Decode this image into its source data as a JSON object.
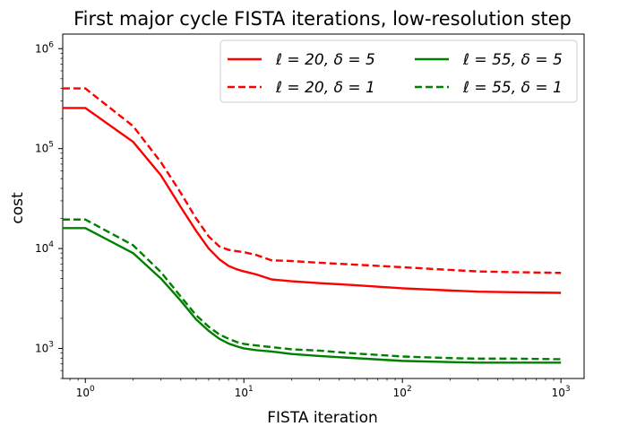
{
  "chart_data": {
    "type": "line",
    "title": "First major cycle FISTA iterations, low-resolution step",
    "xlabel": "FISTA iteration",
    "ylabel": "cost",
    "xscale": "log",
    "yscale": "log",
    "xlim": [
      0.72,
      1400
    ],
    "ylim": [
      500,
      1400000
    ],
    "xticks": [
      {
        "value": 1,
        "base": "10",
        "exp": "0"
      },
      {
        "value": 10,
        "base": "10",
        "exp": "1"
      },
      {
        "value": 100,
        "base": "10",
        "exp": "2"
      },
      {
        "value": 1000,
        "base": "10",
        "exp": "3"
      }
    ],
    "yticks": [
      {
        "value": 1000,
        "base": "10",
        "exp": "3"
      },
      {
        "value": 10000,
        "base": "10",
        "exp": "4"
      },
      {
        "value": 100000,
        "base": "10",
        "exp": "5"
      },
      {
        "value": 1000000,
        "base": "10",
        "exp": "6"
      }
    ],
    "grid": false,
    "legend_position": "top-right",
    "legend_columns": 2,
    "series": [
      {
        "name": "ℓ = 20, δ = 5",
        "color": "#ff0000",
        "dash": "solid",
        "x": [
          0.72,
          1,
          2,
          3,
          4,
          5,
          6,
          7,
          8,
          9,
          10,
          12,
          15,
          20,
          30,
          50,
          100,
          200,
          300,
          500,
          1000
        ],
        "y": [
          255000,
          255000,
          117000,
          54000,
          26000,
          15000,
          10000,
          7800,
          6700,
          6200,
          5900,
          5500,
          4900,
          4700,
          4500,
          4300,
          4000,
          3800,
          3700,
          3650,
          3600
        ]
      },
      {
        "name": "ℓ = 20, δ = 1",
        "color": "#ff0000",
        "dash": "dashed",
        "x": [
          0.72,
          1,
          2,
          3,
          4,
          5,
          6,
          7,
          8,
          9,
          10,
          12,
          15,
          20,
          30,
          50,
          100,
          200,
          300,
          500,
          1000
        ],
        "y": [
          400000,
          400000,
          168000,
          73000,
          36000,
          20000,
          13200,
          10500,
          9700,
          9400,
          9200,
          8600,
          7600,
          7500,
          7200,
          6900,
          6500,
          6100,
          5900,
          5800,
          5700
        ]
      },
      {
        "name": "ℓ = 55, δ = 5",
        "color": "#008000",
        "dash": "solid",
        "x": [
          0.72,
          1,
          2,
          3,
          4,
          5,
          6,
          7,
          8,
          9,
          10,
          12,
          15,
          20,
          30,
          50,
          100,
          200,
          300,
          500,
          1000
        ],
        "y": [
          16000,
          16000,
          9000,
          5000,
          3000,
          1950,
          1500,
          1250,
          1120,
          1050,
          1000,
          960,
          930,
          880,
          840,
          800,
          750,
          730,
          720,
          720,
          720
        ]
      },
      {
        "name": "ℓ = 55, δ = 1",
        "color": "#008000",
        "dash": "dashed",
        "x": [
          0.72,
          1,
          2,
          3,
          4,
          5,
          6,
          7,
          8,
          9,
          10,
          12,
          15,
          20,
          30,
          50,
          100,
          200,
          300,
          500,
          1000
        ],
        "y": [
          19500,
          19500,
          10800,
          5800,
          3300,
          2150,
          1650,
          1380,
          1250,
          1160,
          1110,
          1070,
          1030,
          980,
          950,
          890,
          830,
          800,
          790,
          790,
          780
        ]
      }
    ]
  }
}
